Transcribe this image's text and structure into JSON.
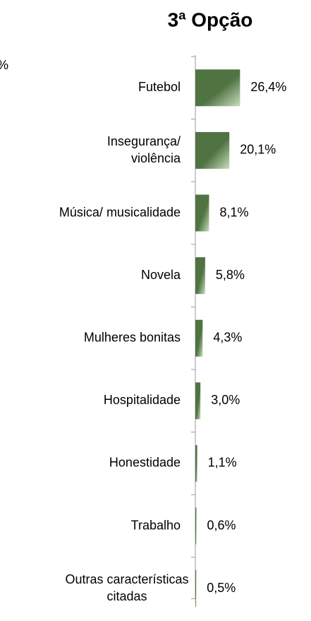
{
  "chart_data": {
    "type": "bar",
    "orientation": "horizontal",
    "title": "3ª Opção",
    "annotations": [
      "%"
    ],
    "categories": [
      "Futebol",
      "Insegurança/\nviolência",
      "Música/ musicalidade",
      "Novela",
      "Mulheres bonitas",
      "Hospitalidade",
      "Honestidade",
      "Trabalho",
      "Outras características\ncitadas"
    ],
    "values": [
      26.4,
      20.1,
      8.1,
      5.8,
      4.3,
      3.0,
      1.1,
      0.6,
      0.5
    ],
    "value_labels": [
      "26,4%",
      "20,1%",
      "8,1%",
      "5,8%",
      "4,3%",
      "3,0%",
      "1,1%",
      "0,6%",
      "0,5%"
    ],
    "color": "#4f7341"
  }
}
